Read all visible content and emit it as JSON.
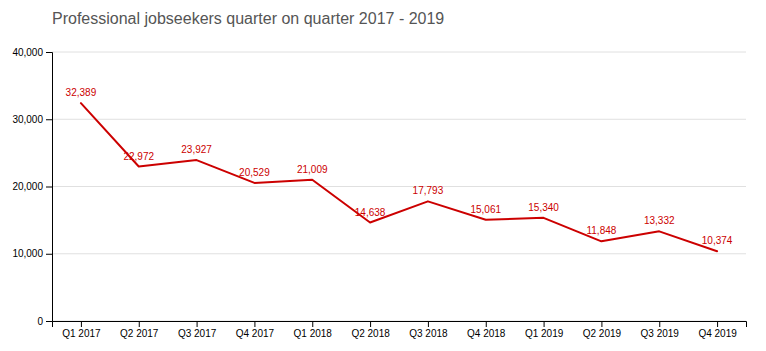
{
  "chart_data": {
    "type": "line",
    "title": "Professional jobseekers quarter on quarter 2017 - 2019",
    "categories": [
      "Q1 2017",
      "Q2 2017",
      "Q3 2017",
      "Q4 2017",
      "Q1 2018",
      "Q2 2018",
      "Q3 2018",
      "Q4 2018",
      "Q1 2019",
      "Q2 2019",
      "Q3 2019",
      "Q4 2019"
    ],
    "values": [
      32389,
      22972,
      23927,
      20529,
      21009,
      14638,
      17793,
      15061,
      15340,
      11848,
      13332,
      10374
    ],
    "value_labels": [
      "32,389",
      "22,972",
      "23,927",
      "20,529",
      "21,009",
      "14,638",
      "17,793",
      "15,061",
      "15,340",
      "11,848",
      "13,332",
      "10,374"
    ],
    "color": "#cc0000",
    "ylim": [
      0,
      40000
    ],
    "yticks": [
      0,
      {
        "value": 10000,
        "label": "10,000"
      },
      {
        "value": 20000,
        "label": "20,000"
      },
      {
        "value": 30000,
        "label": "30,000"
      },
      {
        "value": 40000,
        "label": "40,000"
      }
    ],
    "grid": true,
    "data_labels": true
  }
}
